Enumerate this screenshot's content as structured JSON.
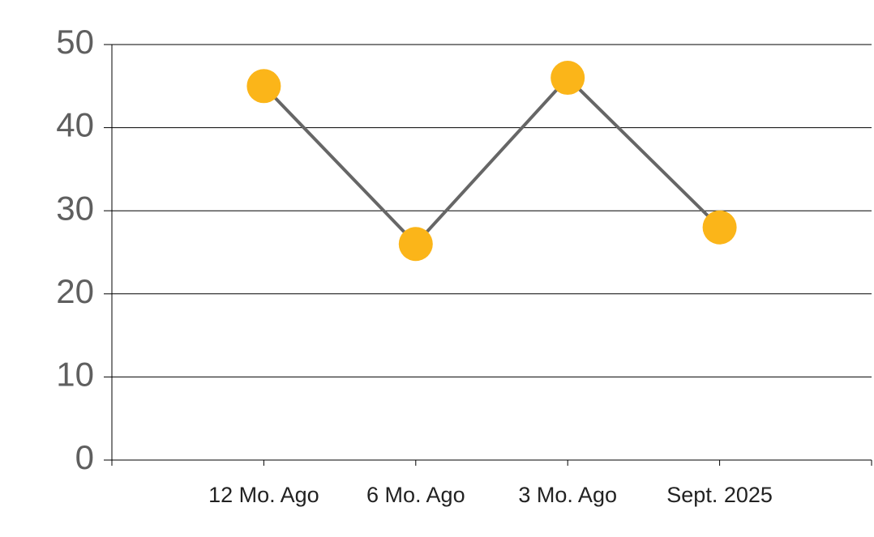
{
  "chart_data": {
    "type": "line",
    "categories": [
      "12 Mo. Ago",
      "6 Mo. Ago",
      "3 Mo. Ago",
      "Sept. 2025"
    ],
    "series": [
      {
        "line_color": "#666666",
        "color": "#fbb519",
        "values": [
          45,
          26,
          46,
          28
        ]
      }
    ],
    "ylim": [
      0,
      50
    ],
    "yticks": [
      0,
      10,
      20,
      30,
      40,
      50
    ],
    "grid": true
  }
}
